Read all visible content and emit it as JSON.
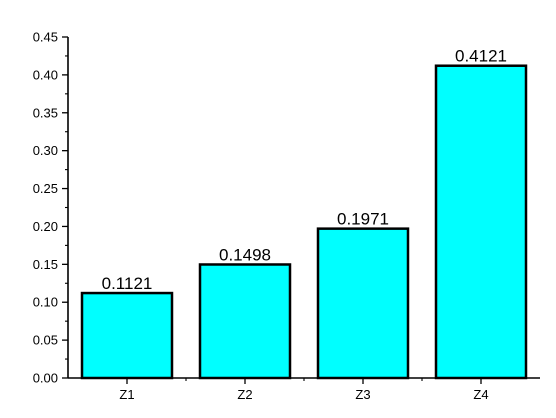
{
  "chart_data": {
    "type": "bar",
    "categories": [
      "Z1",
      "Z2",
      "Z3",
      "Z4"
    ],
    "values": [
      0.1121,
      0.1498,
      0.1971,
      0.4121
    ],
    "data_labels": [
      "0.1121",
      "0.1498",
      "0.1971",
      "0.4121"
    ],
    "y_ticks": [
      "0.00",
      "0.05",
      "0.10",
      "0.15",
      "0.20",
      "0.25",
      "0.30",
      "0.35",
      "0.40",
      "0.45"
    ],
    "title": "",
    "xlabel": "",
    "ylabel": "",
    "ylim": [
      0,
      0.45
    ],
    "grid": false,
    "legend": "none",
    "colors": {
      "bar_fill": "#00ffff",
      "bar_edge": "#000000",
      "axis": "#000000"
    }
  }
}
